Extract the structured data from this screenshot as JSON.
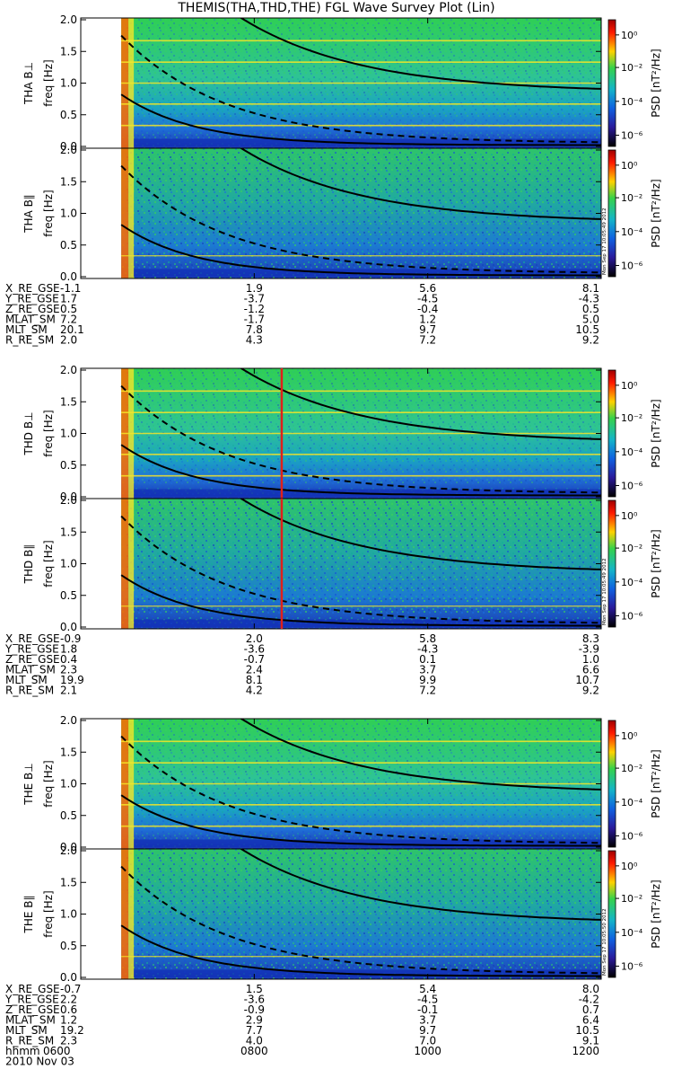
{
  "title": "THEMIS(THA,THD,THE) FGL Wave Survey Plot (Lin)",
  "colorbar": {
    "label": "PSD [nT²/Hz]",
    "ticks": [
      "10⁰",
      "10⁻²",
      "10⁻⁴",
      "10⁻⁶"
    ]
  },
  "freq_ticks": [
    "2.0",
    "1.5",
    "1.0",
    "0.5",
    "0.0"
  ],
  "freq_unit_label": "freq [Hz]",
  "stamps": [
    "Mon Sep 17 10:05:49 2012",
    "Mon Sep 17 10:05:49 2012",
    "Mon Sep 17 10:05:50 2012"
  ],
  "colors": {
    "spectrogram_low": "#1464d2",
    "spectrogram_mid": "#1cb8a8",
    "spectrogram_high": "#3fd45a",
    "burst": "#ff6a00",
    "line_band": "#f5e628",
    "marker_line": "#e0201a",
    "curves": "#000000"
  },
  "chart_data": [
    {
      "type": "heatmap",
      "probe": "THA",
      "panels": [
        "THA B⊥",
        "THA B∥"
      ],
      "ylabel": "freq [Hz]",
      "ylim": [
        0,
        2.0
      ],
      "data_start_hhmm": "0628",
      "ephemeris": [
        {
          "name": "X_RE_GSE",
          "values": [
            "-1.1",
            "1.9",
            "5.6",
            "8.1"
          ]
        },
        {
          "name": "Y_RE_GSE",
          "values": [
            "1.7",
            "-3.7",
            "-4.5",
            "-4.3"
          ]
        },
        {
          "name": "Z_RE_GSE",
          "values": [
            "0.5",
            "-1.2",
            "-0.4",
            "0.5"
          ]
        },
        {
          "name": "MLAT_SM",
          "values": [
            "7.2",
            "-1.7",
            "1.2",
            "5.0"
          ]
        },
        {
          "name": "MLT_SM",
          "values": [
            "20.1",
            "7.8",
            "9.7",
            "10.5"
          ]
        },
        {
          "name": "R_RE_SM",
          "values": [
            "2.0",
            "4.3",
            "7.2",
            "9.2"
          ]
        }
      ]
    },
    {
      "type": "heatmap",
      "probe": "THD",
      "panels": [
        "THD B⊥",
        "THD B∥"
      ],
      "ylabel": "freq [Hz]",
      "ylim": [
        0,
        2.0
      ],
      "data_start_hhmm": "0628",
      "marker_hhmm": "0819",
      "ephemeris": [
        {
          "name": "X_RE_GSE",
          "values": [
            "-0.9",
            "2.0",
            "5.8",
            "8.3"
          ]
        },
        {
          "name": "Y_RE_GSE",
          "values": [
            "1.8",
            "-3.6",
            "-4.3",
            "-3.9"
          ]
        },
        {
          "name": "Z_RE_GSE",
          "values": [
            "0.4",
            "-0.7",
            "0.1",
            "1.0"
          ]
        },
        {
          "name": "MLAT_SM",
          "values": [
            "2.3",
            "2.4",
            "3.7",
            "6.6"
          ]
        },
        {
          "name": "MLT_SM",
          "values": [
            "19.9",
            "8.1",
            "9.9",
            "10.7"
          ]
        },
        {
          "name": "R_RE_SM",
          "values": [
            "2.1",
            "4.2",
            "7.2",
            "9.2"
          ]
        }
      ]
    },
    {
      "type": "heatmap",
      "probe": "THE",
      "panels": [
        "THE B⊥",
        "THE B∥"
      ],
      "ylabel": "freq [Hz]",
      "ylim": [
        0,
        2.0
      ],
      "data_start_hhmm": "0628",
      "ephemeris": [
        {
          "name": "X_RE_GSE",
          "values": [
            "-0.7",
            "1.5",
            "5.4",
            "8.0"
          ]
        },
        {
          "name": "Y_RE_GSE",
          "values": [
            "2.2",
            "-3.6",
            "-4.5",
            "-4.2"
          ]
        },
        {
          "name": "Z_RE_GSE",
          "values": [
            "0.6",
            "-0.9",
            "-0.1",
            "0.7"
          ]
        },
        {
          "name": "MLAT_SM",
          "values": [
            "1.2",
            "2.9",
            "3.7",
            "6.4"
          ]
        },
        {
          "name": "MLT_SM",
          "values": [
            "19.2",
            "7.7",
            "9.7",
            "10.5"
          ]
        },
        {
          "name": "R_RE_SM",
          "values": [
            "2.3",
            "4.0",
            "7.0",
            "9.1"
          ]
        }
      ],
      "time_axis": {
        "label": "hhmm",
        "ticks": [
          "0600",
          "0800",
          "1000",
          "1200"
        ],
        "date": "2010 Nov 03"
      }
    }
  ]
}
